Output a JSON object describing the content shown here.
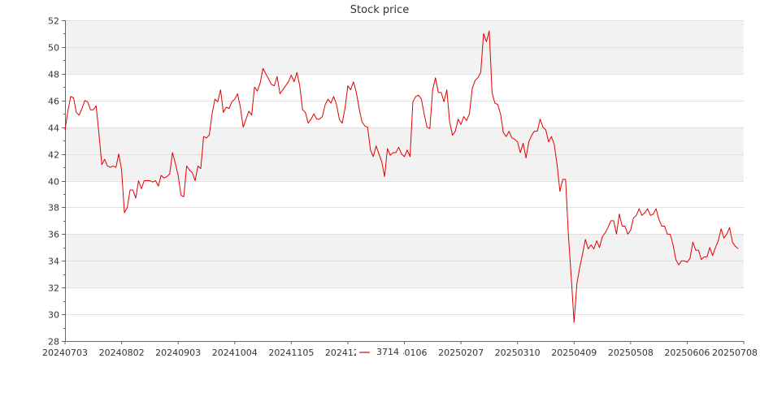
{
  "chart_data": {
    "type": "line",
    "title": "Stock price",
    "xlabel": "",
    "ylabel": "",
    "ylim": [
      28,
      52
    ],
    "y_ticks": [
      "28",
      "30",
      "32",
      "34",
      "36",
      "38",
      "40",
      "42",
      "44",
      "46",
      "48",
      "50",
      "52"
    ],
    "x_tick_labels": [
      "20240703",
      "20240802",
      "20240903",
      "20241004",
      "20241105",
      "20241205",
      "20250106",
      "20250207",
      "20250310",
      "20250409",
      "20250508",
      "20250606",
      "20250708"
    ],
    "x_tick_positions": [
      0,
      20,
      40,
      60,
      80,
      100,
      120,
      140,
      160,
      180,
      200,
      220,
      240
    ],
    "grid": "horizontal-bands",
    "legend_position": "bottom-center",
    "series_color": "#e00000",
    "series": [
      {
        "name": "3714",
        "values": [
          43.8,
          45.2,
          46.3,
          46.2,
          45.1,
          44.9,
          45.4,
          46.0,
          45.9,
          45.3,
          45.3,
          45.6,
          43.5,
          41.2,
          41.6,
          41.1,
          41.0,
          41.1,
          41.0,
          42.0,
          40.8,
          37.6,
          38.0,
          39.3,
          39.3,
          38.7,
          40.0,
          39.4,
          40.0,
          40.0,
          40.0,
          39.9,
          40.0,
          39.6,
          40.4,
          40.2,
          40.3,
          40.5,
          42.1,
          41.3,
          40.4,
          38.9,
          38.8,
          41.1,
          40.8,
          40.6,
          40.0,
          41.1,
          40.9,
          43.3,
          43.2,
          43.4,
          45.0,
          46.1,
          45.9,
          46.8,
          45.1,
          45.5,
          45.4,
          45.9,
          46.1,
          46.5,
          45.5,
          44.0,
          44.6,
          45.2,
          44.9,
          47.0,
          46.7,
          47.3,
          48.4,
          48.0,
          47.6,
          47.2,
          47.1,
          47.8,
          46.5,
          46.8,
          47.1,
          47.4,
          47.9,
          47.4,
          48.1,
          47.1,
          45.3,
          45.1,
          44.3,
          44.6,
          45.0,
          44.6,
          44.6,
          44.8,
          45.7,
          46.1,
          45.8,
          46.3,
          45.7,
          44.6,
          44.3,
          45.4,
          47.1,
          46.8,
          47.4,
          46.6,
          45.4,
          44.4,
          44.1,
          44.0,
          42.3,
          41.8,
          42.6,
          42.0,
          41.4,
          40.3,
          42.4,
          41.9,
          42.1,
          42.1,
          42.5,
          42.0,
          41.8,
          42.3,
          41.8,
          45.9,
          46.3,
          46.4,
          46.1,
          45.0,
          44.0,
          43.9,
          46.8,
          47.7,
          46.6,
          46.6,
          45.9,
          46.8,
          44.4,
          43.4,
          43.7,
          44.6,
          44.2,
          44.8,
          44.5,
          45.0,
          46.9,
          47.5,
          47.7,
          48.1,
          51.0,
          50.4,
          51.2,
          46.6,
          45.8,
          45.7,
          45.0,
          43.6,
          43.3,
          43.7,
          43.2,
          43.1,
          42.9,
          42.1,
          42.8,
          41.7,
          42.9,
          43.4,
          43.7,
          43.7,
          44.6,
          44.0,
          43.8,
          42.9,
          43.3,
          42.7,
          41.2,
          39.2,
          40.1,
          40.1,
          35.9,
          32.8,
          29.4,
          32.3,
          33.5,
          34.5,
          35.6,
          34.9,
          35.2,
          34.9,
          35.5,
          35.0,
          35.8,
          36.1,
          36.5,
          37.0,
          37.0,
          36.0,
          37.5,
          36.6,
          36.6,
          36.0,
          36.3,
          37.2,
          37.4,
          37.9,
          37.4,
          37.6,
          37.9,
          37.4,
          37.5,
          37.9,
          37.1,
          36.6,
          36.6,
          36.0,
          36.0,
          35.2,
          34.1,
          33.7,
          34.0,
          34.0,
          33.9,
          34.2,
          35.4,
          34.8,
          34.8,
          34.1,
          34.3,
          34.3,
          35.0,
          34.4,
          35.0,
          35.5,
          36.4,
          35.7,
          36.0,
          36.5,
          35.4,
          35.1,
          34.9
        ]
      }
    ]
  }
}
